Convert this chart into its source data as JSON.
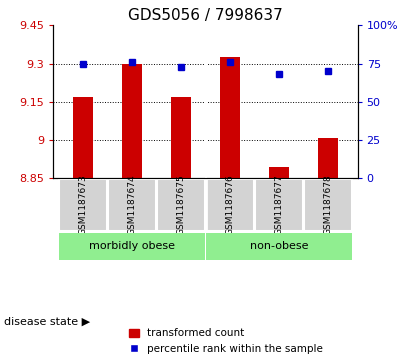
{
  "title": "GDS5056 / 7998637",
  "samples": [
    "GSM1187673",
    "GSM1187674",
    "GSM1187675",
    "GSM1187676",
    "GSM1187677",
    "GSM1187678"
  ],
  "bar_values": [
    9.17,
    9.3,
    9.17,
    9.325,
    8.895,
    9.01
  ],
  "percentile_values": [
    75,
    76,
    73,
    76,
    68,
    70
  ],
  "ymin": 8.85,
  "ymax": 9.45,
  "yticks": [
    8.85,
    9.0,
    9.15,
    9.3,
    9.45
  ],
  "ytick_labels": [
    "8.85",
    "9",
    "9.15",
    "9.3",
    "9.45"
  ],
  "y2min": 0,
  "y2max": 100,
  "y2ticks": [
    0,
    25,
    50,
    75,
    100
  ],
  "y2tick_labels": [
    "0",
    "25",
    "50",
    "75",
    "100%"
  ],
  "bar_color": "#cc0000",
  "dot_color": "#0000cc",
  "bar_width": 0.4,
  "groups": [
    {
      "label": "morbidly obese",
      "indices": [
        0,
        1,
        2
      ],
      "color": "#90ee90"
    },
    {
      "label": "non-obese",
      "indices": [
        3,
        4,
        5
      ],
      "color": "#90ee90"
    }
  ],
  "disease_state_label": "disease state",
  "legend_bar_label": "transformed count",
  "legend_dot_label": "percentile rank within the sample",
  "title_fontsize": 11,
  "axis_label_color_left": "#cc0000",
  "axis_label_color_right": "#0000cc",
  "background_color": "#ffffff"
}
